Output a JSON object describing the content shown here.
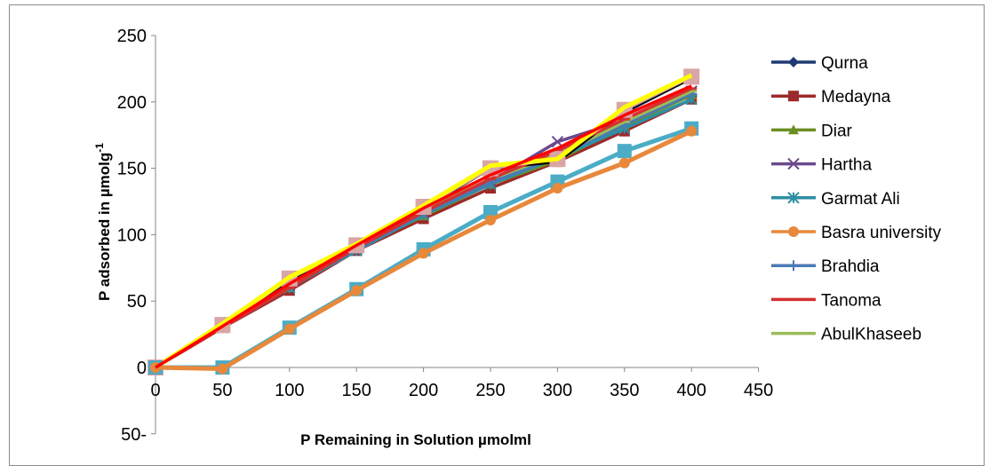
{
  "chart_data": {
    "type": "line",
    "xlabel": "P Remaining in Solution µmolml",
    "ylabel": "P adsorbed in µmolg",
    "ylabel_sup": "-1",
    "xlim": [
      0,
      450
    ],
    "ylim": [
      -50,
      250
    ],
    "x_ticks": [
      0,
      50,
      100,
      150,
      200,
      250,
      300,
      350,
      400,
      450
    ],
    "y_ticks": [
      250,
      200,
      150,
      100,
      50,
      0,
      -50
    ],
    "y_tick_labels": [
      "250",
      "200",
      "150",
      "100",
      "50",
      "0",
      "50-"
    ],
    "grid": false,
    "legend_position": "right",
    "x": [
      0,
      50,
      100,
      150,
      200,
      250,
      300,
      350,
      400
    ],
    "series": [
      {
        "name": "Qurna",
        "color": "#1f3a73",
        "marker": "diamond",
        "values": [
          0,
          30,
          62,
          90,
          115,
          138,
          157,
          192,
          218
        ]
      },
      {
        "name": "Medayna",
        "color": "#9c2a2a",
        "marker": "square",
        "values": [
          0,
          30,
          58,
          88,
          112,
          135,
          155,
          178,
          202
        ]
      },
      {
        "name": "Diar",
        "color": "#6b8e23",
        "marker": "triangle",
        "values": [
          0,
          31,
          60,
          90,
          114,
          138,
          156,
          182,
          205
        ]
      },
      {
        "name": "Hartha",
        "color": "#6a4a8c",
        "marker": "x",
        "values": [
          0,
          31,
          62,
          89,
          117,
          140,
          170,
          186,
          208
        ]
      },
      {
        "name": "Garmat Ali",
        "color": "#2e8fa3",
        "marker": "asterisk",
        "values": [
          0,
          30,
          60,
          88,
          115,
          138,
          158,
          180,
          202
        ]
      },
      {
        "name": "Basra university",
        "color": "#e8883a",
        "marker": "circle",
        "values": [
          0,
          -1,
          29,
          58,
          86,
          111,
          135,
          154,
          178
        ]
      },
      {
        "name": "Brahdia",
        "color": "#4a7ab5",
        "marker": "plus",
        "values": [
          0,
          31,
          61,
          89,
          116,
          139,
          159,
          183,
          206
        ]
      },
      {
        "name": "Tanoma",
        "color": "#d43030",
        "marker": "dash",
        "values": [
          0,
          30,
          60,
          90,
          117,
          142,
          163,
          187,
          210
        ]
      },
      {
        "name": "AbulKhaseeb",
        "color": "#9bbb59",
        "marker": "dash",
        "values": [
          0,
          31,
          62,
          91,
          118,
          142,
          160,
          185,
          208
        ]
      },
      {
        "name": "",
        "color": "#4bacc6",
        "marker": "square",
        "values": [
          0,
          0,
          30,
          59,
          89,
          117,
          140,
          163,
          180
        ]
      },
      {
        "name": "",
        "color": "#ffff00",
        "marker": "none",
        "values": [
          0,
          33,
          68,
          93,
          122,
          152,
          157,
          196,
          220
        ]
      },
      {
        "name": "",
        "color": "#ff0000",
        "marker": "none",
        "values": [
          0,
          31,
          63,
          92,
          120,
          145,
          165,
          190,
          212
        ]
      },
      {
        "name": "",
        "color": "#000000",
        "marker": "none",
        "values": [
          0,
          30,
          64,
          92,
          120,
          150,
          155,
          193,
          218
        ]
      },
      {
        "name": "",
        "color": "#d9a5a5",
        "marker": "square",
        "values": [
          0,
          32,
          67,
          92,
          121,
          150,
          157,
          194,
          219
        ]
      }
    ],
    "legend_count": 9
  }
}
